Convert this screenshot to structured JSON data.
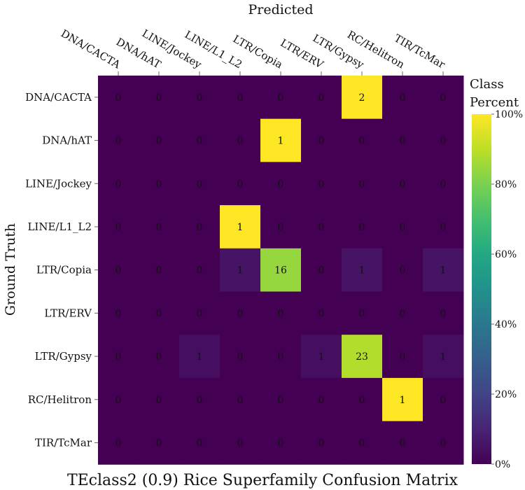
{
  "chart_data": {
    "type": "heatmap",
    "title": "TEclass2 (0.9) Rice Superfamily Confusion Matrix",
    "xlabel": "Predicted",
    "ylabel": "Ground Truth",
    "x_categories": [
      "DNA/CACTA",
      "DNA/hAT",
      "LINE/Jockey",
      "LINE/L1_L2",
      "LTR/Copia",
      "LTR/ERV",
      "LTR/Gypsy",
      "RC/Helitron",
      "TIR/TcMar"
    ],
    "y_categories": [
      "DNA/CACTA",
      "DNA/hAT",
      "LINE/Jockey",
      "LINE/L1_L2",
      "LTR/Copia",
      "LTR/ERV",
      "LTR/Gypsy",
      "RC/Helitron",
      "TIR/TcMar"
    ],
    "values": [
      [
        0,
        0,
        0,
        0,
        0,
        0,
        2,
        0,
        0
      ],
      [
        0,
        0,
        0,
        0,
        1,
        0,
        0,
        0,
        0
      ],
      [
        0,
        0,
        0,
        0,
        0,
        0,
        0,
        0,
        0
      ],
      [
        0,
        0,
        0,
        1,
        0,
        0,
        0,
        0,
        0
      ],
      [
        0,
        0,
        0,
        1,
        16,
        0,
        1,
        0,
        1
      ],
      [
        0,
        0,
        0,
        0,
        0,
        0,
        0,
        0,
        0
      ],
      [
        0,
        0,
        1,
        0,
        0,
        1,
        23,
        0,
        1
      ],
      [
        0,
        0,
        0,
        0,
        0,
        0,
        0,
        1,
        0
      ],
      [
        0,
        0,
        0,
        0,
        0,
        0,
        0,
        0,
        0
      ]
    ],
    "color_scale": "viridis",
    "colorbar": {
      "title": [
        "Class",
        "Percent"
      ],
      "ticks": [
        "0%",
        "20%",
        "40%",
        "60%",
        "80%",
        "100%"
      ],
      "range": [
        0,
        100
      ]
    }
  }
}
